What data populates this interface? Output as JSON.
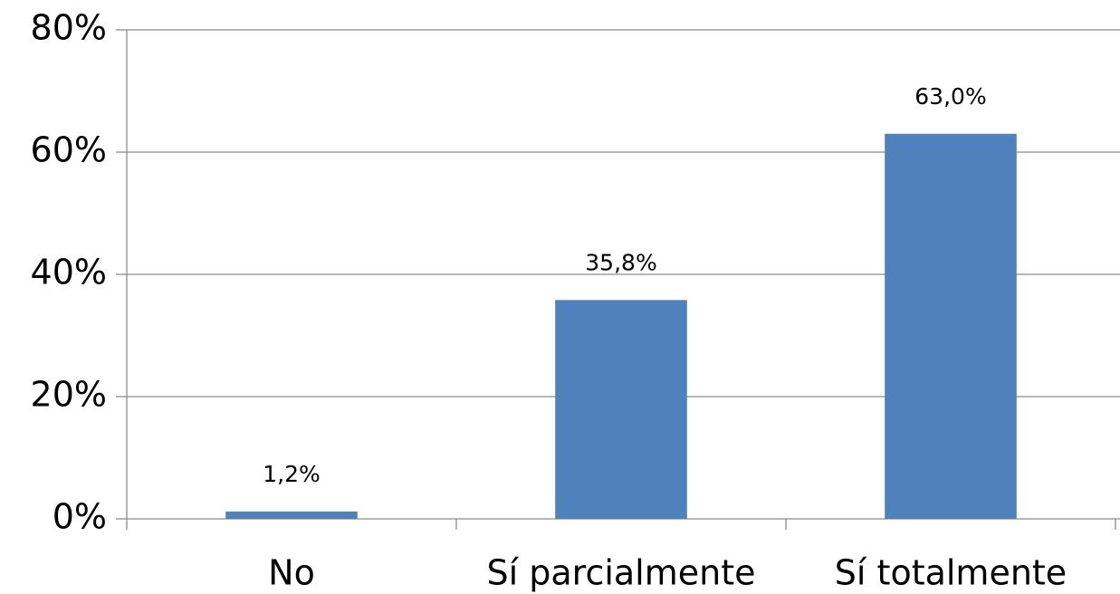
{
  "chart_data": {
    "type": "bar",
    "categories": [
      "No",
      "Sí parcialmente",
      "Sí totalmente"
    ],
    "values": [
      1.2,
      35.8,
      63.0
    ],
    "value_labels": [
      "1,2%",
      "35,8%",
      "63,0%"
    ],
    "color": "#4f81bd",
    "ylim": [
      0,
      80
    ],
    "yticks": [
      {
        "value": 0,
        "label": "0%"
      },
      {
        "value": 20,
        "label": "20%"
      },
      {
        "value": 40,
        "label": "40%"
      },
      {
        "value": 60,
        "label": "60%"
      },
      {
        "value": 80,
        "label": "80%"
      }
    ],
    "grid": true
  }
}
